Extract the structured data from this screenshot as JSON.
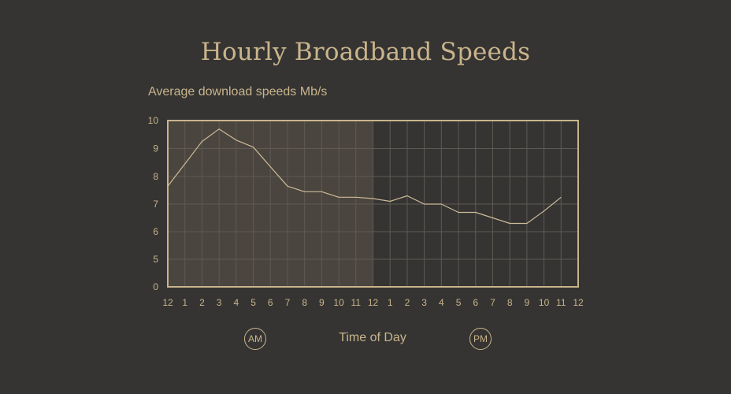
{
  "colors": {
    "background": "#353433",
    "accent": "#c9b48b",
    "am_shade": "#4b453f",
    "grid": "#5e5a53",
    "line": "#cdbb98"
  },
  "labels": {
    "am": "AM",
    "pm": "PM"
  },
  "chart_data": {
    "type": "line",
    "title": "Hourly Broadband Speeds",
    "ylabel": "Average download speeds Mb/s",
    "xlabel": "Time of Day",
    "x": [
      0,
      1,
      2,
      3,
      4,
      5,
      6,
      7,
      8,
      9,
      10,
      11,
      12,
      13,
      14,
      15,
      16,
      17,
      18,
      19,
      20,
      21,
      22,
      23
    ],
    "x_tick_labels": [
      "12",
      "1",
      "2",
      "3",
      "4",
      "5",
      "6",
      "7",
      "8",
      "9",
      "10",
      "11",
      "12",
      "1",
      "2",
      "3",
      "4",
      "5",
      "6",
      "7",
      "8",
      "9",
      "10",
      "11",
      "12"
    ],
    "y_tick_labels": [
      "0",
      "5",
      "6",
      "7",
      "8",
      "9",
      "10"
    ],
    "y_tick_values": [
      0,
      5,
      6,
      7,
      8,
      9,
      10
    ],
    "y_axis_break": true,
    "xlim": [
      0,
      24
    ],
    "ylim": [
      0,
      10
    ],
    "shaded_region": {
      "label": "AM",
      "from": 0,
      "to": 12
    },
    "grid": true,
    "series": [
      {
        "values": [
          7.65,
          8.45,
          9.25,
          9.7,
          9.3,
          9.05,
          8.35,
          7.65,
          7.45,
          7.45,
          7.25,
          7.25,
          7.2,
          7.1,
          7.3,
          7.0,
          7.0,
          6.7,
          6.7,
          6.5,
          6.3,
          6.3,
          6.75,
          7.25
        ]
      }
    ]
  }
}
